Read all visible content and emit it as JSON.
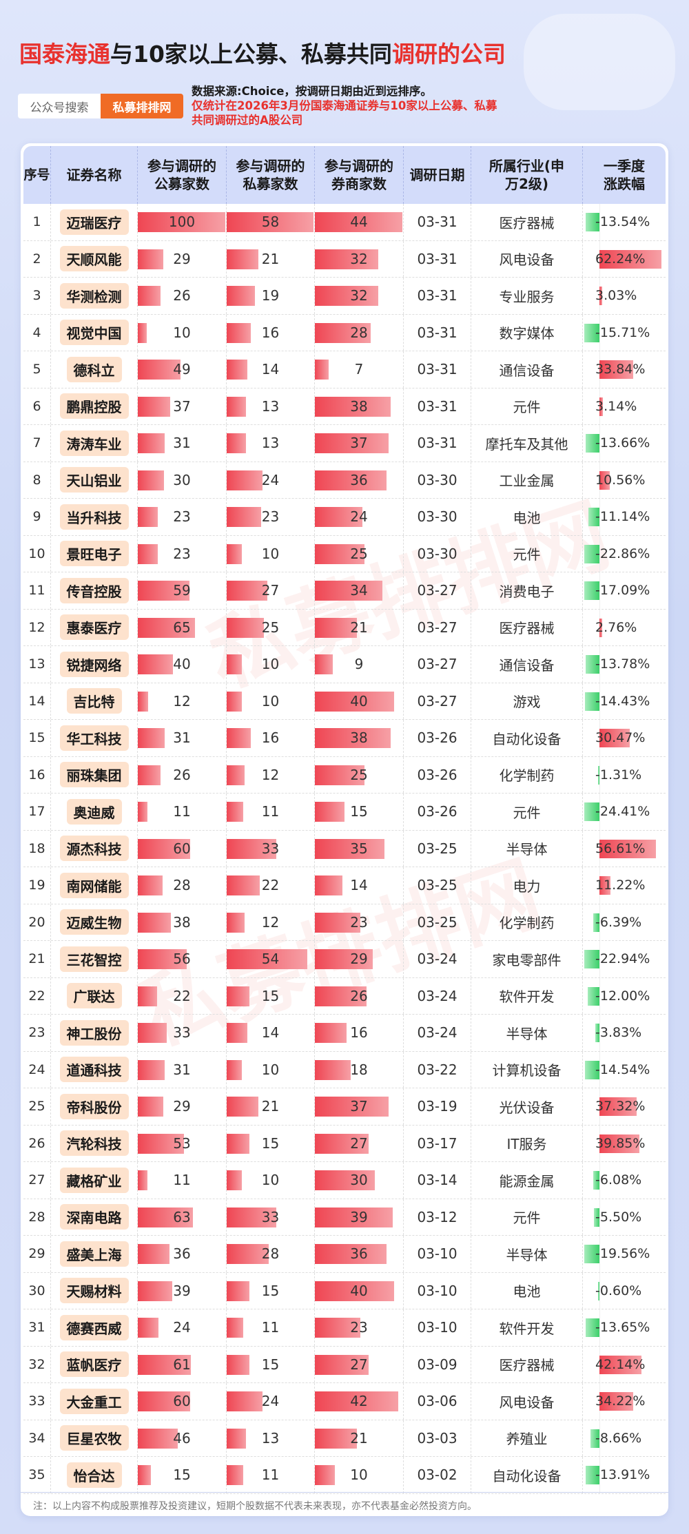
{
  "title": {
    "part1": "国泰海通",
    "part2": "与10家以上公募、私募共同",
    "part3": "调研的公司"
  },
  "tags": {
    "search": "公众号搜索",
    "brand": "私募排排网"
  },
  "source": {
    "line1": "数据来源:Choice，按调研日期由近到远排序。",
    "line2": "仅统计在2026年3月份国泰海通证券与10家以上公募、私募",
    "line3": "共同调研过的A股公司"
  },
  "watermark": "私募排排网",
  "headers": {
    "seq": "序号",
    "name": "证券名称",
    "pub": "参与调研的公募家数",
    "pri": "参与调研的私募家数",
    "brk": "参与调研的券商家数",
    "date": "调研日期",
    "ind": "所属行业(申万2级)",
    "chg": "一季度涨跌幅"
  },
  "rows": [
    {
      "seq": "1",
      "name": "迈瑞医疗",
      "pub": 100,
      "pri": 58,
      "brk": 44,
      "date": "03-31",
      "ind": "医疗器械",
      "chg": -13.54,
      "chg_text": "-13.54%"
    },
    {
      "seq": "2",
      "name": "天顺风能",
      "pub": 29,
      "pri": 21,
      "brk": 32,
      "date": "03-31",
      "ind": "风电设备",
      "chg": 62.24,
      "chg_text": "62.24%"
    },
    {
      "seq": "3",
      "name": "华测检测",
      "pub": 26,
      "pri": 19,
      "brk": 32,
      "date": "03-31",
      "ind": "专业服务",
      "chg": 3.03,
      "chg_text": "3.03%"
    },
    {
      "seq": "4",
      "name": "视觉中国",
      "pub": 10,
      "pri": 16,
      "brk": 28,
      "date": "03-31",
      "ind": "数字媒体",
      "chg": -15.71,
      "chg_text": "-15.71%"
    },
    {
      "seq": "5",
      "name": "德科立",
      "pub": 49,
      "pri": 14,
      "brk": 7,
      "date": "03-31",
      "ind": "通信设备",
      "chg": 33.84,
      "chg_text": "33.84%"
    },
    {
      "seq": "6",
      "name": "鹏鼎控股",
      "pub": 37,
      "pri": 13,
      "brk": 38,
      "date": "03-31",
      "ind": "元件",
      "chg": 3.14,
      "chg_text": "3.14%"
    },
    {
      "seq": "7",
      "name": "涛涛车业",
      "pub": 31,
      "pri": 13,
      "brk": 37,
      "date": "03-31",
      "ind": "摩托车及其他",
      "chg": -13.66,
      "chg_text": "-13.66%"
    },
    {
      "seq": "8",
      "name": "天山铝业",
      "pub": 30,
      "pri": 24,
      "brk": 36,
      "date": "03-30",
      "ind": "工业金属",
      "chg": 10.56,
      "chg_text": "10.56%"
    },
    {
      "seq": "9",
      "name": "当升科技",
      "pub": 23,
      "pri": 23,
      "brk": 24,
      "date": "03-30",
      "ind": "电池",
      "chg": -11.14,
      "chg_text": "-11.14%"
    },
    {
      "seq": "10",
      "name": "景旺电子",
      "pub": 23,
      "pri": 10,
      "brk": 25,
      "date": "03-30",
      "ind": "元件",
      "chg": -22.86,
      "chg_text": "-22.86%"
    },
    {
      "seq": "11",
      "name": "传音控股",
      "pub": 59,
      "pri": 27,
      "brk": 34,
      "date": "03-27",
      "ind": "消费电子",
      "chg": -17.09,
      "chg_text": "-17.09%"
    },
    {
      "seq": "12",
      "name": "惠泰医疗",
      "pub": 65,
      "pri": 25,
      "brk": 21,
      "date": "03-27",
      "ind": "医疗器械",
      "chg": 2.76,
      "chg_text": "2.76%"
    },
    {
      "seq": "13",
      "name": "锐捷网络",
      "pub": 40,
      "pri": 10,
      "brk": 9,
      "date": "03-27",
      "ind": "通信设备",
      "chg": -13.78,
      "chg_text": "-13.78%"
    },
    {
      "seq": "14",
      "name": "吉比特",
      "pub": 12,
      "pri": 10,
      "brk": 40,
      "date": "03-27",
      "ind": "游戏",
      "chg": -14.43,
      "chg_text": "-14.43%"
    },
    {
      "seq": "15",
      "name": "华工科技",
      "pub": 31,
      "pri": 16,
      "brk": 38,
      "date": "03-26",
      "ind": "自动化设备",
      "chg": 30.47,
      "chg_text": "30.47%"
    },
    {
      "seq": "16",
      "name": "丽珠集团",
      "pub": 26,
      "pri": 12,
      "brk": 25,
      "date": "03-26",
      "ind": "化学制药",
      "chg": -1.31,
      "chg_text": "-1.31%"
    },
    {
      "seq": "17",
      "name": "奥迪威",
      "pub": 11,
      "pri": 11,
      "brk": 15,
      "date": "03-26",
      "ind": "元件",
      "chg": -24.41,
      "chg_text": "-24.41%"
    },
    {
      "seq": "18",
      "name": "源杰科技",
      "pub": 60,
      "pri": 33,
      "brk": 35,
      "date": "03-25",
      "ind": "半导体",
      "chg": 56.61,
      "chg_text": "56.61%"
    },
    {
      "seq": "19",
      "name": "南网储能",
      "pub": 28,
      "pri": 22,
      "brk": 14,
      "date": "03-25",
      "ind": "电力",
      "chg": 11.22,
      "chg_text": "11.22%"
    },
    {
      "seq": "20",
      "name": "迈威生物",
      "pub": 38,
      "pri": 12,
      "brk": 23,
      "date": "03-25",
      "ind": "化学制药",
      "chg": -6.39,
      "chg_text": "-6.39%"
    },
    {
      "seq": "21",
      "name": "三花智控",
      "pub": 56,
      "pri": 54,
      "brk": 29,
      "date": "03-24",
      "ind": "家电零部件",
      "chg": -22.94,
      "chg_text": "-22.94%"
    },
    {
      "seq": "22",
      "name": "广联达",
      "pub": 22,
      "pri": 15,
      "brk": 26,
      "date": "03-24",
      "ind": "软件开发",
      "chg": -12.0,
      "chg_text": "-12.00%"
    },
    {
      "seq": "23",
      "name": "神工股份",
      "pub": 33,
      "pri": 14,
      "brk": 16,
      "date": "03-24",
      "ind": "半导体",
      "chg": -3.83,
      "chg_text": "-3.83%"
    },
    {
      "seq": "24",
      "name": "道通科技",
      "pub": 31,
      "pri": 10,
      "brk": 18,
      "date": "03-22",
      "ind": "计算机设备",
      "chg": -14.54,
      "chg_text": "-14.54%"
    },
    {
      "seq": "25",
      "name": "帝科股份",
      "pub": 29,
      "pri": 21,
      "brk": 37,
      "date": "03-19",
      "ind": "光伏设备",
      "chg": 37.32,
      "chg_text": "37.32%"
    },
    {
      "seq": "26",
      "name": "汽轮科技",
      "pub": 53,
      "pri": 15,
      "brk": 27,
      "date": "03-17",
      "ind": "IT服务",
      "chg": 39.85,
      "chg_text": "39.85%"
    },
    {
      "seq": "27",
      "name": "藏格矿业",
      "pub": 11,
      "pri": 10,
      "brk": 30,
      "date": "03-14",
      "ind": "能源金属",
      "chg": -6.08,
      "chg_text": "-6.08%"
    },
    {
      "seq": "28",
      "name": "深南电路",
      "pub": 63,
      "pri": 33,
      "brk": 39,
      "date": "03-12",
      "ind": "元件",
      "chg": -5.5,
      "chg_text": "-5.50%"
    },
    {
      "seq": "29",
      "name": "盛美上海",
      "pub": 36,
      "pri": 28,
      "brk": 36,
      "date": "03-10",
      "ind": "半导体",
      "chg": -19.56,
      "chg_text": "-19.56%"
    },
    {
      "seq": "30",
      "name": "天赐材料",
      "pub": 39,
      "pri": 15,
      "brk": 40,
      "date": "03-10",
      "ind": "电池",
      "chg": -0.6,
      "chg_text": "-0.60%"
    },
    {
      "seq": "31",
      "name": "德赛西威",
      "pub": 24,
      "pri": 11,
      "brk": 23,
      "date": "03-10",
      "ind": "软件开发",
      "chg": -13.65,
      "chg_text": "-13.65%"
    },
    {
      "seq": "32",
      "name": "蓝帆医疗",
      "pub": 61,
      "pri": 15,
      "brk": 27,
      "date": "03-09",
      "ind": "医疗器械",
      "chg": 42.14,
      "chg_text": "42.14%"
    },
    {
      "seq": "33",
      "name": "大金重工",
      "pub": 60,
      "pri": 24,
      "brk": 42,
      "date": "03-06",
      "ind": "风电设备",
      "chg": 34.22,
      "chg_text": "34.22%"
    },
    {
      "seq": "34",
      "name": "巨星农牧",
      "pub": 46,
      "pri": 13,
      "brk": 21,
      "date": "03-03",
      "ind": "养殖业",
      "chg": -8.66,
      "chg_text": "-8.66%"
    },
    {
      "seq": "35",
      "name": "怡合达",
      "pub": 15,
      "pri": 11,
      "brk": 10,
      "date": "03-02",
      "ind": "自动化设备",
      "chg": -13.91,
      "chg_text": "-13.91%"
    }
  ],
  "scales": {
    "pub_max": 100,
    "pri_max": 58,
    "brk_max": 44,
    "chg_max": 62.24
  },
  "colors": {
    "title_red": "#e8322e",
    "brand_orange": "#f06b25",
    "pos_bar": "#ef4653",
    "neg_bar": "#3ccf6a",
    "header_bg": "#d3dcfa"
  },
  "note": "注：以上内容不构成股票推荐及投资建议，短期个股数据不代表未来表现，亦不代表基金必然投资方向。"
}
